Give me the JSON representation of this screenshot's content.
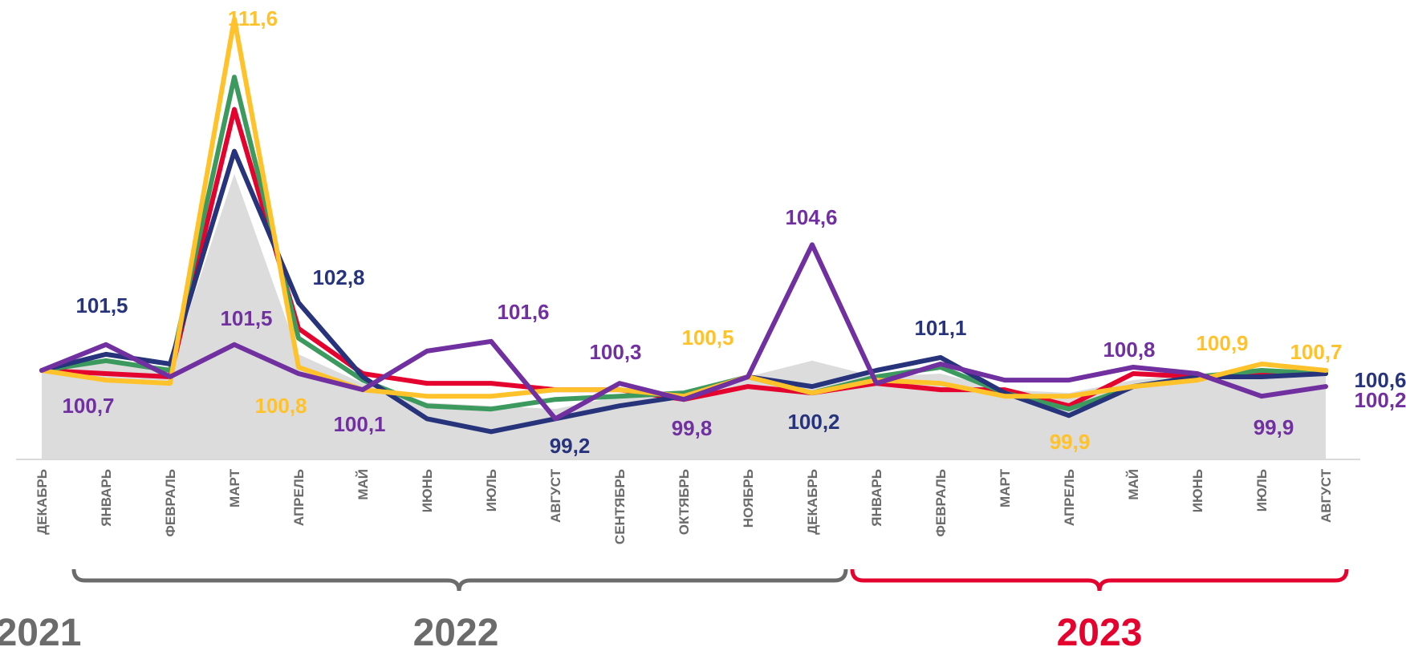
{
  "chart_data": {
    "type": "line",
    "categories": [
      "ДЕКАБРЬ",
      "ЯНВАРЬ",
      "ФЕВРАЛЬ",
      "МАРТ",
      "АПРЕЛЬ",
      "МАЙ",
      "ИЮНЬ",
      "ИЮЛЬ",
      "АВГУСТ",
      "СЕНТЯБРЬ",
      "ОКТЯБРЬ",
      "НОЯБРЬ",
      "ДЕКАБРЬ",
      "ЯНВАРЬ",
      "ФЕВРАЛЬ",
      "МАРТ",
      "АПРЕЛЬ",
      "МАЙ",
      "ИЮНЬ",
      "ИЮЛЬ",
      "АВГУСТ"
    ],
    "area": {
      "color": "#dcdcdc",
      "values": [
        100.7,
        101.0,
        100.8,
        106.8,
        101.2,
        100.3,
        99.7,
        99.6,
        99.5,
        99.9,
        100.0,
        100.5,
        101.0,
        100.5,
        100.6,
        100.1,
        100.0,
        100.4,
        100.6,
        100.6,
        100.6
      ]
    },
    "series": [
      {
        "color": "#e4032e",
        "values": [
          100.7,
          100.6,
          100.5,
          108.8,
          102.0,
          100.6,
          100.3,
          100.3,
          100.1,
          100.1,
          99.8,
          100.2,
          100.0,
          100.3,
          100.1,
          100.1,
          99.6,
          100.6,
          100.5,
          100.6,
          100.7
        ]
      },
      {
        "color": "#3c9a5f",
        "values": [
          100.7,
          101.0,
          100.7,
          109.8,
          101.7,
          100.4,
          99.6,
          99.5,
          99.8,
          99.9,
          100.0,
          100.5,
          100.0,
          100.5,
          100.8,
          100.0,
          99.5,
          100.2,
          100.5,
          100.7,
          100.6
        ]
      },
      {
        "color": "#27337a",
        "values": [
          100.7,
          101.2,
          100.9,
          107.5,
          102.8,
          100.5,
          99.2,
          98.8,
          99.2,
          99.6,
          99.9,
          100.5,
          100.2,
          100.7,
          101.1,
          100.0,
          99.3,
          100.2,
          100.5,
          100.5,
          100.6
        ]
      },
      {
        "color": "#ffc22b",
        "values": [
          100.7,
          100.4,
          100.3,
          111.6,
          100.8,
          100.1,
          99.9,
          99.9,
          100.1,
          100.1,
          99.9,
          100.5,
          100.0,
          100.4,
          100.3,
          99.9,
          99.9,
          100.2,
          100.4,
          100.9,
          100.7
        ]
      },
      {
        "color": "#7130a0",
        "values": [
          100.7,
          101.5,
          100.5,
          101.5,
          100.6,
          100.1,
          101.3,
          101.6,
          99.2,
          100.3,
          99.8,
          100.5,
          104.6,
          100.3,
          100.9,
          100.4,
          100.4,
          100.8,
          100.6,
          99.9,
          100.2
        ]
      }
    ],
    "data_labels": [
      {
        "text": "111,6",
        "color": "#ffc22b"
      },
      {
        "text": "101,5",
        "color": "#27337a"
      },
      {
        "text": "102,8",
        "color": "#27337a"
      },
      {
        "text": "101,5",
        "color": "#7130a0"
      },
      {
        "text": "101,6",
        "color": "#7130a0"
      },
      {
        "text": "100,3",
        "color": "#7130a0"
      },
      {
        "text": "100,5",
        "color": "#ffc22b"
      },
      {
        "text": "104,6",
        "color": "#7130a0"
      },
      {
        "text": "101,1",
        "color": "#27337a"
      },
      {
        "text": "100,8",
        "color": "#7130a0"
      },
      {
        "text": "100,9",
        "color": "#ffc22b"
      },
      {
        "text": "100,7",
        "color": "#ffc22b"
      },
      {
        "text": "100,7",
        "color": "#7130a0"
      },
      {
        "text": "100,8",
        "color": "#ffc22b"
      },
      {
        "text": "100,1",
        "color": "#7130a0"
      },
      {
        "text": "99,2",
        "color": "#27337a"
      },
      {
        "text": "99,8",
        "color": "#7130a0"
      },
      {
        "text": "100,2",
        "color": "#27337a"
      },
      {
        "text": "99,9",
        "color": "#ffc22b"
      },
      {
        "text": "99,9",
        "color": "#7130a0"
      },
      {
        "text": "100,6",
        "color": "#27337a"
      },
      {
        "text": "100,2",
        "color": "#7130a0"
      }
    ],
    "years": [
      {
        "text": "2021",
        "color": "#6b6b6b"
      },
      {
        "text": "2022",
        "color": "#6b6b6b"
      },
      {
        "text": "2023",
        "color": "#e4032e"
      }
    ],
    "grid": false,
    "legend": "none"
  }
}
